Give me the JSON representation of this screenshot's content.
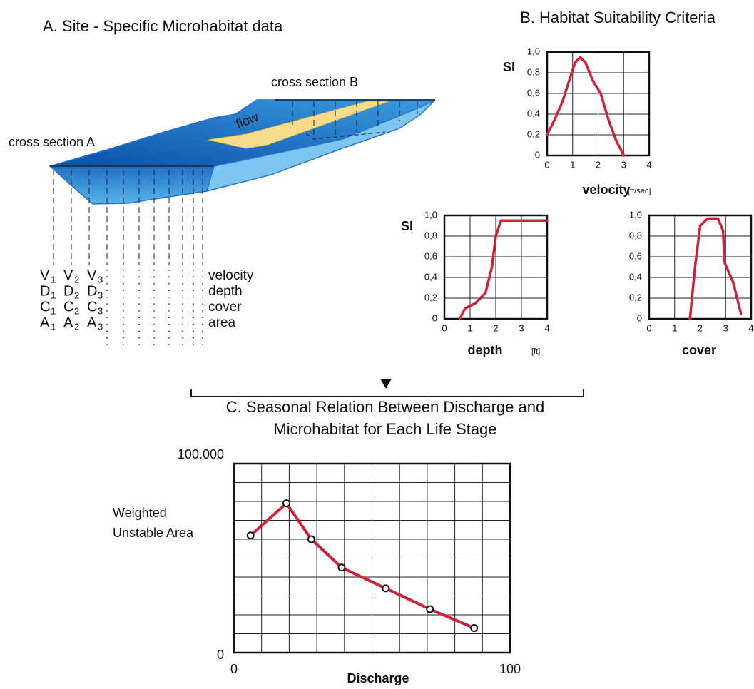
{
  "panel_a": {
    "title": "A. Site - Specific Microhabitat data",
    "cross_section_a": "cross section A",
    "cross_section_b": "cross section B",
    "flow": "flow",
    "rows": [
      {
        "symbols": [
          {
            "letter": "V",
            "sub": "1"
          },
          {
            "letter": "V",
            "sub": "2"
          },
          {
            "letter": "V",
            "sub": "3"
          }
        ],
        "label": "velocity"
      },
      {
        "symbols": [
          {
            "letter": "D",
            "sub": "1"
          },
          {
            "letter": "D",
            "sub": "2"
          },
          {
            "letter": "D",
            "sub": "3"
          }
        ],
        "label": "depth"
      },
      {
        "symbols": [
          {
            "letter": "C",
            "sub": "1"
          },
          {
            "letter": "C",
            "sub": "2"
          },
          {
            "letter": "C",
            "sub": "3"
          }
        ],
        "label": "cover"
      },
      {
        "symbols": [
          {
            "letter": "A",
            "sub": "1"
          },
          {
            "letter": "A",
            "sub": "2"
          },
          {
            "letter": "A",
            "sub": "3"
          }
        ],
        "label": "area"
      }
    ]
  },
  "panel_b_title": "B. Habitat Suitability Criteria",
  "chart_data": [
    {
      "type": "line",
      "y_label": "SI",
      "x_label": "velocity",
      "x_unit": "[ft/sec]",
      "color": "#d42035",
      "x": [
        0,
        0.3,
        0.6,
        0.9,
        1.1,
        1.3,
        1.5,
        1.8,
        2.1,
        2.4,
        2.7,
        3.0
      ],
      "values": [
        0.2,
        0.35,
        0.52,
        0.75,
        0.9,
        0.95,
        0.9,
        0.72,
        0.6,
        0.35,
        0.15,
        0
      ],
      "xlim": [
        0,
        4
      ],
      "ylim": [
        0,
        1
      ],
      "xticks": [
        0,
        1,
        2,
        3,
        4
      ],
      "yticks": [
        0,
        {
          "value": 0.2,
          "label": "0,2"
        },
        {
          "value": 0.4,
          "label": "0,4"
        },
        {
          "value": 0.6,
          "label": "0,6"
        },
        {
          "value": 0.8,
          "label": "0,8"
        },
        {
          "value": 1,
          "label": "1,0"
        }
      ],
      "grid": true
    },
    {
      "type": "line",
      "y_label": "SI",
      "x_label": "depth",
      "x_unit": "[ft]",
      "color": "#d42035",
      "x": [
        0.6,
        0.8,
        1.2,
        1.6,
        1.85,
        2.0,
        2.2,
        4
      ],
      "values": [
        0,
        0.1,
        0.15,
        0.25,
        0.5,
        0.8,
        0.95,
        0.95
      ],
      "xlim": [
        0,
        4
      ],
      "ylim": [
        0,
        1
      ],
      "xticks": [
        0,
        1,
        2,
        3,
        4
      ],
      "yticks": [
        0,
        {
          "value": 0.2,
          "label": "0,2"
        },
        {
          "value": 0.4,
          "label": "0,4"
        },
        {
          "value": 0.6,
          "label": "0,6"
        },
        {
          "value": 0.8,
          "label": "0,8"
        },
        {
          "value": 1,
          "label": "1,0"
        }
      ],
      "grid": true
    },
    {
      "type": "line",
      "x_label": "cover",
      "color": "#d42035",
      "x": [
        1.6,
        1.8,
        2.0,
        2.3,
        2.7,
        2.9,
        2.95,
        3.3,
        3.6
      ],
      "values": [
        0,
        0.5,
        0.9,
        0.97,
        0.97,
        0.85,
        0.55,
        0.35,
        0.05
      ],
      "xlim": [
        0,
        4
      ],
      "ylim": [
        0,
        1
      ],
      "xticks": [
        0,
        1,
        2,
        3,
        4
      ],
      "yticks": [
        0,
        {
          "value": 0.2,
          "label": "0,2"
        },
        {
          "value": 0.4,
          "label": "0,4"
        },
        {
          "value": 0.6,
          "label": "0,6"
        },
        {
          "value": 0.8,
          "label": "0,8"
        },
        {
          "value": 1,
          "label": "1,0"
        }
      ],
      "grid": true
    },
    {
      "type": "line",
      "title": [
        "C. Seasonal Relation Between Discharge and",
        "Microhabitat for Each Life Stage"
      ],
      "y_label": [
        "Weighted",
        "Unstable Area"
      ],
      "x_label": "Discharge",
      "color": "#d42035",
      "markers": true,
      "x": [
        6,
        19,
        28,
        39,
        55,
        71,
        87
      ],
      "values": [
        62000,
        79000,
        60000,
        45000,
        34000,
        23000,
        13000
      ],
      "xlim": [
        0,
        100
      ],
      "ylim": [
        0,
        100000
      ],
      "xticks": [
        0,
        100
      ],
      "yticks": [
        0,
        {
          "value": 100000,
          "label": "100.000"
        }
      ],
      "xgrid": [
        10,
        20,
        30,
        40,
        50,
        60,
        70,
        80,
        90
      ],
      "ygrid": [
        10000,
        20000,
        30000,
        40000,
        50000,
        60000,
        70000,
        80000,
        90000
      ],
      "grid": true
    }
  ]
}
